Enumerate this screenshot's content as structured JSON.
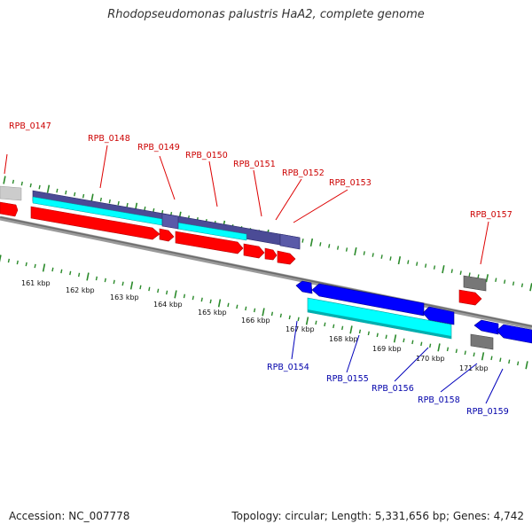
{
  "title": "Rhodopseudomonas palustris HaA2, complete genome",
  "footer": {
    "accession": "Accession: NC_007778",
    "summary": "Topology: circular; Length: 5,331,656 bp; Genes: 4,742"
  },
  "colors": {
    "forward_label": "#cc0000",
    "reverse_label": "#0000aa",
    "cds_forward": "#ff0000",
    "cds_reverse": "#0000ff",
    "rna_band": "#00ffff",
    "gene_band": "#4b4b96",
    "backbone": "#8a8a8a",
    "tick": "#2a8a2a",
    "pseudo": "#777777"
  },
  "ruler": {
    "labels": [
      "161 kbp",
      "162 kbp",
      "163 kbp",
      "164 kbp",
      "165 kbp",
      "166 kbp",
      "167 kbp",
      "168 kbp",
      "169 kbp",
      "170 kbp",
      "171 kbp"
    ]
  },
  "genes_forward": [
    "RPB_0147",
    "RPB_0148",
    "RPB_0149",
    "RPB_0150",
    "RPB_0151",
    "RPB_0152",
    "RPB_0153",
    "RPB_0157"
  ],
  "genes_reverse": [
    "RPB_0154",
    "RPB_0155",
    "RPB_0156",
    "RPB_0158",
    "RPB_0159"
  ]
}
